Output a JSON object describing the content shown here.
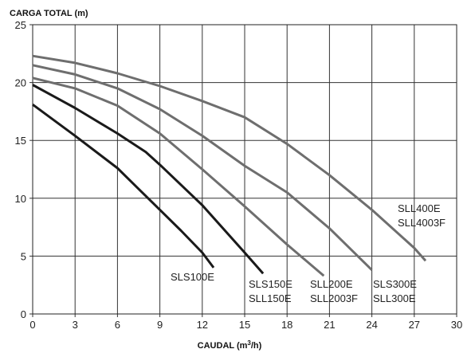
{
  "chart_data": {
    "type": "line",
    "ylabel": "CARGA TOTAL (m)",
    "xlabel_main": "CAUDAL (m",
    "xlabel_sup": "3",
    "xlabel_end": "/h)",
    "xlim": [
      0,
      30
    ],
    "ylim": [
      0,
      25
    ],
    "grid": true,
    "x_ticks": [
      {
        "value": 0,
        "label": "0"
      },
      {
        "value": 3,
        "label": "3"
      },
      {
        "value": 6,
        "label": "6"
      },
      {
        "value": 9,
        "label": "9"
      },
      {
        "value": 12,
        "label": "12"
      },
      {
        "value": 15,
        "label": "15"
      },
      {
        "value": 18,
        "label": "18"
      },
      {
        "value": 21,
        "label": "21"
      },
      {
        "value": 24,
        "label": "24"
      },
      {
        "value": 27,
        "label": "27"
      },
      {
        "value": 30,
        "label": "30"
      }
    ],
    "y_ticks": [
      {
        "value": 0,
        "label": "0"
      },
      {
        "value": 5,
        "label": "5"
      },
      {
        "value": 10,
        "label": "10"
      },
      {
        "value": 15,
        "label": "15"
      },
      {
        "value": 20,
        "label": "20"
      },
      {
        "value": 25,
        "label": "25"
      }
    ],
    "series": [
      {
        "label_lines": [
          "SLS100E"
        ],
        "color": "#1a1a1a",
        "points": [
          [
            0,
            18.1
          ],
          [
            3,
            15.4
          ],
          [
            6,
            12.6
          ],
          [
            7.5,
            10.8
          ],
          [
            9,
            9.0
          ],
          [
            10.5,
            7.2
          ],
          [
            12,
            5.3
          ],
          [
            12.8,
            4.0
          ]
        ]
      },
      {
        "label_lines": [
          "SLS150E",
          "SLL150E"
        ],
        "color": "#1a1a1a",
        "points": [
          [
            0,
            19.8
          ],
          [
            3,
            17.8
          ],
          [
            6,
            15.6
          ],
          [
            8,
            14.0
          ],
          [
            9,
            12.9
          ],
          [
            12,
            9.4
          ],
          [
            15,
            5.3
          ],
          [
            16.3,
            3.5
          ]
        ]
      },
      {
        "label_lines": [
          "SLL200E",
          "SLL2003F"
        ],
        "color": "#6e6e6e",
        "points": [
          [
            0,
            20.4
          ],
          [
            3,
            19.5
          ],
          [
            6,
            18.0
          ],
          [
            9,
            15.6
          ],
          [
            12,
            12.5
          ],
          [
            15,
            9.3
          ],
          [
            18,
            6.0
          ],
          [
            20.6,
            3.3
          ]
        ]
      },
      {
        "label_lines": [
          "SLS300E",
          "SLL300E"
        ],
        "color": "#6e6e6e",
        "points": [
          [
            0,
            21.5
          ],
          [
            3,
            20.7
          ],
          [
            6,
            19.5
          ],
          [
            9,
            17.7
          ],
          [
            12,
            15.4
          ],
          [
            15,
            12.8
          ],
          [
            18,
            10.5
          ],
          [
            21,
            7.4
          ],
          [
            24,
            3.8
          ]
        ]
      },
      {
        "label_lines": [
          "SLL400E",
          "SLL4003F"
        ],
        "color": "#6e6e6e",
        "points": [
          [
            0,
            22.3
          ],
          [
            3,
            21.7
          ],
          [
            6,
            20.8
          ],
          [
            9,
            19.7
          ],
          [
            12,
            18.4
          ],
          [
            15,
            17.0
          ],
          [
            18,
            14.7
          ],
          [
            21,
            12.0
          ],
          [
            24,
            9.0
          ],
          [
            27,
            5.7
          ],
          [
            27.8,
            4.6
          ]
        ]
      }
    ]
  }
}
